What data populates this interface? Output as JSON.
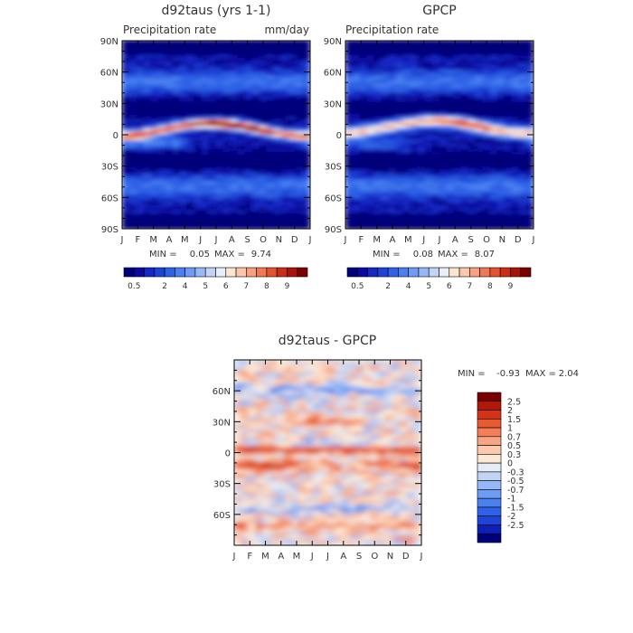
{
  "colors": {
    "precip": [
      "#00007a",
      "#0a0aa0",
      "#1428c4",
      "#1e44d6",
      "#2f62e6",
      "#4a80f0",
      "#6e9cf5",
      "#97b8f7",
      "#c2d4f5",
      "#e9eef8",
      "#fde5d4",
      "#fbc6aa",
      "#f7a17f",
      "#f07a55",
      "#e4532f",
      "#cc2d14",
      "#a8140a",
      "#7a0000"
    ],
    "diff": [
      "#00007a",
      "#0c20b8",
      "#1e44d6",
      "#2f62e6",
      "#4a80f0",
      "#6e9cf5",
      "#97b8f7",
      "#c2d4f5",
      "#e4ecf8",
      "#fde8d6",
      "#fbcaad",
      "#f7a685",
      "#f27f58",
      "#e85a30",
      "#d33418",
      "#b01808",
      "#7a0000"
    ]
  },
  "chart_data": [
    {
      "id": "model",
      "type": "heatmap",
      "title": "d92taus (yrs 1-1)",
      "subtitle_left": "Precipitation rate",
      "subtitle_right": "mm/day",
      "xlabels": [
        "J",
        "F",
        "M",
        "A",
        "M",
        "J",
        "J",
        "A",
        "S",
        "O",
        "N",
        "D",
        "J"
      ],
      "ylabels": [
        "90N",
        "60N",
        "30N",
        "0",
        "30S",
        "60S",
        "90S"
      ],
      "ylim": [
        -90,
        90
      ],
      "stats": {
        "min_label": "MIN =",
        "min": "0.05",
        "max_label": "MAX =",
        "max": "9.74"
      },
      "colorbar_labels": [
        "0.5",
        "2",
        "4",
        "5",
        "6",
        "7",
        "8",
        "9"
      ],
      "note": "seasonal precipitation climatology, ITCZ band peaking ~9.7 mm/day near 5N in Jun-Aug"
    },
    {
      "id": "obs",
      "type": "heatmap",
      "title": "GPCP",
      "subtitle_left": "Precipitation rate",
      "subtitle_right": "",
      "xlabels": [
        "J",
        "F",
        "M",
        "A",
        "M",
        "J",
        "J",
        "A",
        "S",
        "O",
        "N",
        "D",
        "J"
      ],
      "ylabels": [
        "90N",
        "60N",
        "30N",
        "0",
        "30S",
        "60S",
        "90S"
      ],
      "ylim": [
        -90,
        90
      ],
      "stats": {
        "min_label": "MIN =",
        "min": "0.08",
        "max_label": "MAX =",
        "max": "8.07"
      },
      "colorbar_labels": [
        "0.5",
        "2",
        "4",
        "5",
        "6",
        "7",
        "8",
        "9"
      ],
      "note": "observed precipitation, ITCZ peaking ~8 mm/day near 8N"
    },
    {
      "id": "diff",
      "type": "heatmap",
      "title": "d92taus - GPCP",
      "xlabels": [
        "J",
        "F",
        "M",
        "A",
        "M",
        "J",
        "J",
        "A",
        "S",
        "O",
        "N",
        "D",
        "J"
      ],
      "ylabels": [
        "60N",
        "30N",
        "0",
        "30S",
        "60S"
      ],
      "ylim": [
        -90,
        90
      ],
      "stats": {
        "min_label": "MIN =",
        "min": "-0.93",
        "max_label": "MAX =",
        "max": "2.04"
      },
      "colorbar_labels": [
        "2.5",
        "2",
        "1.5",
        "1",
        "0.7",
        "0.5",
        "0.3",
        "0",
        "-0.3",
        "-0.5",
        "-0.7",
        "-1",
        "-1.5",
        "-2",
        "-2.5"
      ],
      "note": "difference field, positive bias along equator and ~10S"
    }
  ]
}
